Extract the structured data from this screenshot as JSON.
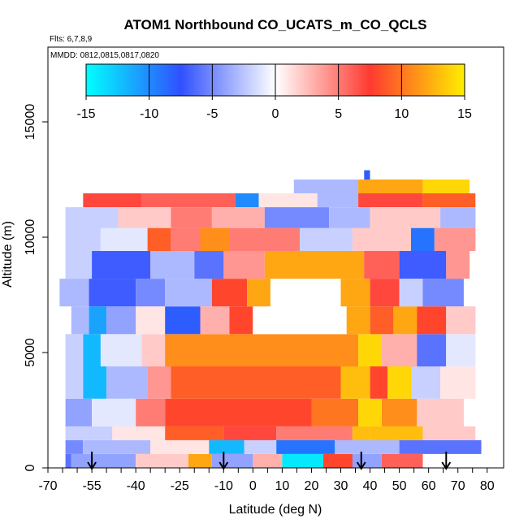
{
  "chart_data": {
    "type": "heatmap",
    "title": "ATOM1 Northbound CO_UCATS_m_CO_QCLS",
    "flights_note": "Flts: 6,7,8,9",
    "dates_note": "MMDD: 0812,0815,0817,0820",
    "xlabel": "Latitude (deg N)",
    "ylabel": "Altitude (m)",
    "xlim": [
      -70,
      80
    ],
    "ylim": [
      0,
      17500
    ],
    "x_ticks": [
      -70,
      -55,
      -40,
      -25,
      -10,
      0,
      10,
      20,
      30,
      40,
      50,
      60,
      70,
      80
    ],
    "y_ticks": [
      0,
      5000,
      10000,
      15000
    ],
    "colorbar": {
      "ticks": [
        -15,
        -10,
        -5,
        0,
        5,
        10,
        15
      ],
      "range": [
        -15,
        15
      ],
      "colors": [
        "#00ffff",
        "#3050ff",
        "#ffffff",
        "#ff3a30",
        "#ffee00"
      ]
    },
    "flight_markers_lat": [
      -55,
      -10,
      37,
      66
    ],
    "cells": [
      {
        "lat0": -64,
        "lat1": -62,
        "alt0": 0,
        "alt1": 600,
        "value": -6
      },
      {
        "lat0": -62,
        "lat1": -40,
        "alt0": 0,
        "alt1": 600,
        "value": -4
      },
      {
        "lat0": -40,
        "lat1": -22,
        "alt0": 0,
        "alt1": 600,
        "value": 2
      },
      {
        "lat0": -22,
        "lat1": -14,
        "alt0": 0,
        "alt1": 600,
        "value": 12
      },
      {
        "lat0": -14,
        "lat1": 0,
        "alt0": 0,
        "alt1": 600,
        "value": -4
      },
      {
        "lat0": 0,
        "lat1": 10,
        "alt0": 0,
        "alt1": 600,
        "value": 3
      },
      {
        "lat0": 10,
        "lat1": 24,
        "alt0": 0,
        "alt1": 600,
        "value": -14
      },
      {
        "lat0": 24,
        "lat1": 34,
        "alt0": 0,
        "alt1": 600,
        "value": 8
      },
      {
        "lat0": 34,
        "lat1": 44,
        "alt0": 0,
        "alt1": 600,
        "value": -4
      },
      {
        "lat0": 44,
        "lat1": 58,
        "alt0": 0,
        "alt1": 600,
        "value": 6
      },
      {
        "lat0": -64,
        "lat1": -58,
        "alt0": 600,
        "alt1": 1200,
        "value": -5
      },
      {
        "lat0": -58,
        "lat1": -35,
        "alt0": 600,
        "alt1": 1200,
        "value": -3
      },
      {
        "lat0": -35,
        "lat1": -15,
        "alt0": 600,
        "alt1": 1200,
        "value": 1
      },
      {
        "lat0": -15,
        "lat1": -3,
        "alt0": 600,
        "alt1": 1200,
        "value": -12
      },
      {
        "lat0": -3,
        "lat1": 8,
        "alt0": 600,
        "alt1": 1200,
        "value": -2
      },
      {
        "lat0": 8,
        "lat1": 28,
        "alt0": 600,
        "alt1": 1200,
        "value": -9
      },
      {
        "lat0": 28,
        "lat1": 50,
        "alt0": 600,
        "alt1": 1200,
        "value": -3
      },
      {
        "lat0": 50,
        "lat1": 78,
        "alt0": 600,
        "alt1": 1200,
        "value": -6
      },
      {
        "lat0": -64,
        "lat1": -48,
        "alt0": 1200,
        "alt1": 1800,
        "value": -2
      },
      {
        "lat0": -48,
        "lat1": -30,
        "alt0": 1200,
        "alt1": 1800,
        "value": 1
      },
      {
        "lat0": -30,
        "lat1": -10,
        "alt0": 1200,
        "alt1": 1800,
        "value": 9
      },
      {
        "lat0": -10,
        "lat1": 8,
        "alt0": 1200,
        "alt1": 1800,
        "value": 7
      },
      {
        "lat0": 8,
        "lat1": 34,
        "alt0": 1200,
        "alt1": 1800,
        "value": 5
      },
      {
        "lat0": 34,
        "lat1": 40,
        "alt0": 1200,
        "alt1": 1800,
        "value": 13
      },
      {
        "lat0": 40,
        "lat1": 58,
        "alt0": 1200,
        "alt1": 1800,
        "value": 13
      },
      {
        "lat0": 58,
        "lat1": 76,
        "alt0": 1200,
        "alt1": 1800,
        "value": 2
      },
      {
        "lat0": -64,
        "lat1": -55,
        "alt0": 1800,
        "alt1": 3000,
        "value": -4
      },
      {
        "lat0": -55,
        "lat1": -40,
        "alt0": 1800,
        "alt1": 3000,
        "value": -1
      },
      {
        "lat0": -40,
        "lat1": -30,
        "alt0": 1800,
        "alt1": 3000,
        "value": 5
      },
      {
        "lat0": -30,
        "lat1": 20,
        "alt0": 1800,
        "alt1": 3000,
        "value": 8
      },
      {
        "lat0": 20,
        "lat1": 36,
        "alt0": 1800,
        "alt1": 3000,
        "value": 10
      },
      {
        "lat0": 36,
        "lat1": 44,
        "alt0": 1800,
        "alt1": 3000,
        "value": 14
      },
      {
        "lat0": 44,
        "lat1": 56,
        "alt0": 1800,
        "alt1": 3000,
        "value": 11
      },
      {
        "lat0": 56,
        "lat1": 72,
        "alt0": 1800,
        "alt1": 3000,
        "value": 2
      },
      {
        "lat0": -64,
        "lat1": -58,
        "alt0": 3000,
        "alt1": 4400,
        "value": -2
      },
      {
        "lat0": -58,
        "lat1": -50,
        "alt0": 3000,
        "alt1": 4400,
        "value": -12
      },
      {
        "lat0": -50,
        "lat1": -36,
        "alt0": 3000,
        "alt1": 4400,
        "value": -3
      },
      {
        "lat0": -36,
        "lat1": -28,
        "alt0": 3000,
        "alt1": 4400,
        "value": 4
      },
      {
        "lat0": -28,
        "lat1": 30,
        "alt0": 3000,
        "alt1": 4400,
        "value": 9
      },
      {
        "lat0": 30,
        "lat1": 40,
        "alt0": 3000,
        "alt1": 4400,
        "value": 13
      },
      {
        "lat0": 40,
        "lat1": 46,
        "alt0": 3000,
        "alt1": 4400,
        "value": 8
      },
      {
        "lat0": 46,
        "lat1": 54,
        "alt0": 3000,
        "alt1": 4400,
        "value": 14
      },
      {
        "lat0": 54,
        "lat1": 64,
        "alt0": 3000,
        "alt1": 4400,
        "value": -2
      },
      {
        "lat0": 64,
        "lat1": 76,
        "alt0": 3000,
        "alt1": 4400,
        "value": 1
      },
      {
        "lat0": -64,
        "lat1": -58,
        "alt0": 4400,
        "alt1": 5800,
        "value": -2
      },
      {
        "lat0": -58,
        "lat1": -52,
        "alt0": 4400,
        "alt1": 5800,
        "value": -12
      },
      {
        "lat0": -52,
        "lat1": -38,
        "alt0": 4400,
        "alt1": 5800,
        "value": -1
      },
      {
        "lat0": -38,
        "lat1": -30,
        "alt0": 4400,
        "alt1": 5800,
        "value": 2
      },
      {
        "lat0": -30,
        "lat1": 36,
        "alt0": 4400,
        "alt1": 5800,
        "value": 11
      },
      {
        "lat0": 36,
        "lat1": 44,
        "alt0": 4400,
        "alt1": 5800,
        "value": 14
      },
      {
        "lat0": 44,
        "lat1": 56,
        "alt0": 4400,
        "alt1": 5800,
        "value": 3
      },
      {
        "lat0": 56,
        "lat1": 66,
        "alt0": 4400,
        "alt1": 5800,
        "value": -6
      },
      {
        "lat0": 66,
        "lat1": 76,
        "alt0": 4400,
        "alt1": 5800,
        "value": -1
      },
      {
        "lat0": -62,
        "lat1": -56,
        "alt0": 5800,
        "alt1": 7000,
        "value": -3
      },
      {
        "lat0": -56,
        "lat1": -50,
        "alt0": 5800,
        "alt1": 7000,
        "value": -11
      },
      {
        "lat0": -50,
        "lat1": -40,
        "alt0": 5800,
        "alt1": 7000,
        "value": -4
      },
      {
        "lat0": -40,
        "lat1": -30,
        "alt0": 5800,
        "alt1": 7000,
        "value": 1
      },
      {
        "lat0": -30,
        "lat1": -18,
        "alt0": 5800,
        "alt1": 7000,
        "value": -8
      },
      {
        "lat0": -18,
        "lat1": -8,
        "alt0": 5800,
        "alt1": 7000,
        "value": 3
      },
      {
        "lat0": -8,
        "lat1": 0,
        "alt0": 5800,
        "alt1": 7000,
        "value": 8
      },
      {
        "lat0": 0,
        "lat1": 32,
        "alt0": 5800,
        "alt1": 7000,
        "value": 0
      },
      {
        "lat0": 32,
        "lat1": 40,
        "alt0": 5800,
        "alt1": 7000,
        "value": 12
      },
      {
        "lat0": 40,
        "lat1": 48,
        "alt0": 5800,
        "alt1": 7000,
        "value": 9
      },
      {
        "lat0": 48,
        "lat1": 56,
        "alt0": 5800,
        "alt1": 7000,
        "value": 12
      },
      {
        "lat0": 56,
        "lat1": 66,
        "alt0": 5800,
        "alt1": 7000,
        "value": 8
      },
      {
        "lat0": 66,
        "lat1": 76,
        "alt0": 5800,
        "alt1": 7000,
        "value": 2
      },
      {
        "lat0": -66,
        "lat1": -56,
        "alt0": 7000,
        "alt1": 8200,
        "value": -3
      },
      {
        "lat0": -56,
        "lat1": -40,
        "alt0": 7000,
        "alt1": 8200,
        "value": -7
      },
      {
        "lat0": -40,
        "lat1": -30,
        "alt0": 7000,
        "alt1": 8200,
        "value": -5
      },
      {
        "lat0": -30,
        "lat1": -14,
        "alt0": 7000,
        "alt1": 8200,
        "value": -3
      },
      {
        "lat0": -14,
        "lat1": -2,
        "alt0": 7000,
        "alt1": 8200,
        "value": 8
      },
      {
        "lat0": -2,
        "lat1": 6,
        "alt0": 7000,
        "alt1": 8200,
        "value": 12
      },
      {
        "lat0": 6,
        "lat1": 30,
        "alt0": 7000,
        "alt1": 8200,
        "value": 0
      },
      {
        "lat0": 30,
        "lat1": 40,
        "alt0": 7000,
        "alt1": 8200,
        "value": 12
      },
      {
        "lat0": 40,
        "lat1": 50,
        "alt0": 7000,
        "alt1": 8200,
        "value": 7
      },
      {
        "lat0": 50,
        "lat1": 58,
        "alt0": 7000,
        "alt1": 8200,
        "value": -2
      },
      {
        "lat0": 58,
        "lat1": 72,
        "alt0": 7000,
        "alt1": 8200,
        "value": -5
      },
      {
        "lat0": -64,
        "lat1": -55,
        "alt0": 8200,
        "alt1": 9400,
        "value": -2
      },
      {
        "lat0": -55,
        "lat1": -35,
        "alt0": 8200,
        "alt1": 9400,
        "value": -7
      },
      {
        "lat0": -35,
        "lat1": -20,
        "alt0": 8200,
        "alt1": 9400,
        "value": -3
      },
      {
        "lat0": -20,
        "lat1": -10,
        "alt0": 8200,
        "alt1": 9400,
        "value": -6
      },
      {
        "lat0": -10,
        "lat1": 4,
        "alt0": 8200,
        "alt1": 9400,
        "value": 4
      },
      {
        "lat0": 4,
        "lat1": 38,
        "alt0": 8200,
        "alt1": 9400,
        "value": 12
      },
      {
        "lat0": 38,
        "lat1": 50,
        "alt0": 8200,
        "alt1": 9400,
        "value": 6
      },
      {
        "lat0": 50,
        "lat1": 66,
        "alt0": 8200,
        "alt1": 9400,
        "value": -7
      },
      {
        "lat0": 66,
        "lat1": 74,
        "alt0": 8200,
        "alt1": 9400,
        "value": 4
      },
      {
        "lat0": -64,
        "lat1": -52,
        "alt0": 9400,
        "alt1": 10400,
        "value": -2
      },
      {
        "lat0": -52,
        "lat1": -36,
        "alt0": 9400,
        "alt1": 10400,
        "value": -1
      },
      {
        "lat0": -36,
        "lat1": -28,
        "alt0": 9400,
        "alt1": 10400,
        "value": 9
      },
      {
        "lat0": -28,
        "lat1": -18,
        "alt0": 9400,
        "alt1": 10400,
        "value": 5
      },
      {
        "lat0": -18,
        "lat1": -8,
        "alt0": 9400,
        "alt1": 10400,
        "value": 11
      },
      {
        "lat0": -8,
        "lat1": 16,
        "alt0": 9400,
        "alt1": 10400,
        "value": 5
      },
      {
        "lat0": 16,
        "lat1": 34,
        "alt0": 9400,
        "alt1": 10400,
        "value": -2
      },
      {
        "lat0": 34,
        "lat1": 54,
        "alt0": 9400,
        "alt1": 10400,
        "value": 2
      },
      {
        "lat0": 54,
        "lat1": 62,
        "alt0": 9400,
        "alt1": 10400,
        "value": -9
      },
      {
        "lat0": 62,
        "lat1": 76,
        "alt0": 9400,
        "alt1": 10400,
        "value": 4
      },
      {
        "lat0": -64,
        "lat1": -46,
        "alt0": 10400,
        "alt1": 11300,
        "value": -2
      },
      {
        "lat0": -46,
        "lat1": -28,
        "alt0": 10400,
        "alt1": 11300,
        "value": 2
      },
      {
        "lat0": -28,
        "lat1": -14,
        "alt0": 10400,
        "alt1": 11300,
        "value": 5
      },
      {
        "lat0": -14,
        "lat1": 4,
        "alt0": 10400,
        "alt1": 11300,
        "value": 3
      },
      {
        "lat0": 4,
        "lat1": 26,
        "alt0": 10400,
        "alt1": 11300,
        "value": -5
      },
      {
        "lat0": 26,
        "lat1": 40,
        "alt0": 10400,
        "alt1": 11300,
        "value": -3
      },
      {
        "lat0": 40,
        "lat1": 64,
        "alt0": 10400,
        "alt1": 11300,
        "value": 2
      },
      {
        "lat0": 64,
        "lat1": 76,
        "alt0": 10400,
        "alt1": 11300,
        "value": -3
      },
      {
        "lat0": -58,
        "lat1": -38,
        "alt0": 11300,
        "alt1": 11900,
        "value": 7
      },
      {
        "lat0": -38,
        "lat1": -6,
        "alt0": 11300,
        "alt1": 11900,
        "value": 6
      },
      {
        "lat0": -6,
        "lat1": 2,
        "alt0": 11300,
        "alt1": 11900,
        "value": -10
      },
      {
        "lat0": 2,
        "lat1": 22,
        "alt0": 11300,
        "alt1": 11900,
        "value": 1
      },
      {
        "lat0": 22,
        "lat1": 36,
        "alt0": 11300,
        "alt1": 11900,
        "value": -3
      },
      {
        "lat0": 36,
        "lat1": 58,
        "alt0": 11300,
        "alt1": 11900,
        "value": 7
      },
      {
        "lat0": 58,
        "lat1": 76,
        "alt0": 11300,
        "alt1": 11900,
        "value": 9
      },
      {
        "lat0": 14,
        "lat1": 36,
        "alt0": 11900,
        "alt1": 12500,
        "value": -3
      },
      {
        "lat0": 36,
        "lat1": 58,
        "alt0": 11900,
        "alt1": 12500,
        "value": 12
      },
      {
        "lat0": 58,
        "lat1": 74,
        "alt0": 11900,
        "alt1": 12500,
        "value": 14
      },
      {
        "lat0": 38,
        "lat1": 40,
        "alt0": 12500,
        "alt1": 12900,
        "value": -8
      }
    ]
  }
}
